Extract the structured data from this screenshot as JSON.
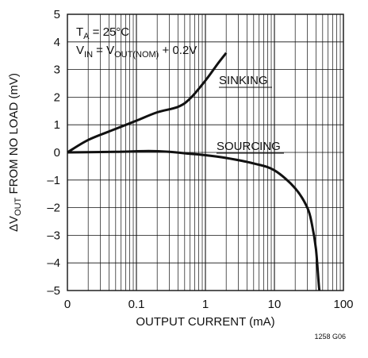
{
  "chart_data": {
    "type": "line",
    "x_scale": "log-like (0, 0.1, 1, 10, 100 mA)",
    "xlabel": "OUTPUT CURRENT (mA)",
    "ylabel_prefix": "ΔV",
    "ylabel_sub": "OUT",
    "ylabel_suffix": " FROM NO LOAD (mV)",
    "x_ticks": [
      "0",
      "0.1",
      "1",
      "10",
      "100"
    ],
    "y_ticks": [
      "5",
      "4",
      "3",
      "2",
      "1",
      "0",
      "–1",
      "–2",
      "–3",
      "–4",
      "–5"
    ],
    "ylim": [
      -5,
      5
    ],
    "grid": true,
    "conditions": {
      "line1_main": "T",
      "line1_sub": "A",
      "line1_rest": " = 25°C",
      "line2_a": "V",
      "line2_a_sub": "IN",
      "line2_eq": " = V",
      "line2_b_sub": "OUT(NOM)",
      "line2_rest": " + 0.2V"
    },
    "figure_code": "1258 G06",
    "series": [
      {
        "name": "SINKING",
        "points": [
          [
            0,
            0
          ],
          [
            0.02,
            0.45
          ],
          [
            0.05,
            0.85
          ],
          [
            0.1,
            1.15
          ],
          [
            0.2,
            1.45
          ],
          [
            0.4,
            1.65
          ],
          [
            0.6,
            1.95
          ],
          [
            1,
            2.6
          ],
          [
            1.5,
            3.2
          ],
          [
            2,
            3.6
          ]
        ]
      },
      {
        "name": "SOURCING",
        "points": [
          [
            0,
            0
          ],
          [
            0.05,
            0.02
          ],
          [
            0.15,
            0.05
          ],
          [
            0.3,
            0.02
          ],
          [
            0.6,
            -0.05
          ],
          [
            1,
            -0.1
          ],
          [
            2,
            -0.2
          ],
          [
            5,
            -0.4
          ],
          [
            10,
            -0.65
          ],
          [
            20,
            -1.3
          ],
          [
            30,
            -2.0
          ],
          [
            35,
            -2.6
          ],
          [
            40,
            -3.5
          ],
          [
            44,
            -4.8
          ],
          [
            45,
            -5.0
          ]
        ]
      }
    ]
  }
}
